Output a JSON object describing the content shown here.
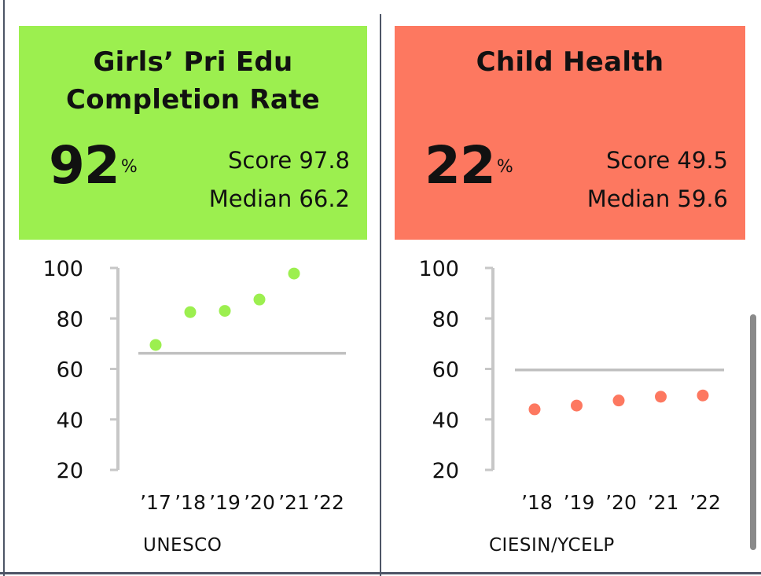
{
  "colors": {
    "education_accent": "#9cef4f",
    "health_accent": "#fd7860",
    "axis": "#c7c7c7",
    "median_line": "#c0c0c0"
  },
  "cards": [
    {
      "title_line1": "Girls’ Pri Edu",
      "title_line2": "Completion Rate",
      "big_value": "92",
      "percent_sign": "%",
      "score_text": "Score 97.8",
      "median_text": "Median 66.2",
      "source": "UNESCO"
    },
    {
      "title_line1": "Child Health",
      "title_line2": "",
      "big_value": "22",
      "percent_sign": "%",
      "score_text": "Score 49.5",
      "median_text": "Median 59.6",
      "source": "CIESIN/YCELP"
    }
  ],
  "chart_data": [
    {
      "type": "scatter",
      "title": "Girls’ Pri Edu Completion Rate",
      "xlabel": "",
      "ylabel": "",
      "ylim": [
        20,
        100
      ],
      "y_ticks": [
        100,
        80,
        60,
        40,
        20
      ],
      "categories": [
        "’17",
        "’18",
        "’19",
        "’20",
        "’21",
        "’22"
      ],
      "series": [
        {
          "name": "Score",
          "values": [
            69.5,
            82.5,
            83,
            87.5,
            97.8,
            null
          ]
        }
      ],
      "median": 66.2,
      "color": "#9cef4f"
    },
    {
      "type": "scatter",
      "title": "Child Health",
      "xlabel": "",
      "ylabel": "",
      "ylim": [
        20,
        100
      ],
      "y_ticks": [
        100,
        80,
        60,
        40,
        20
      ],
      "categories": [
        "’18",
        "’19",
        "’20",
        "’21",
        "’22"
      ],
      "series": [
        {
          "name": "Score",
          "values": [
            44,
            45.5,
            47.5,
            49,
            49.5
          ]
        }
      ],
      "median": 59.6,
      "color": "#fd7860"
    }
  ]
}
